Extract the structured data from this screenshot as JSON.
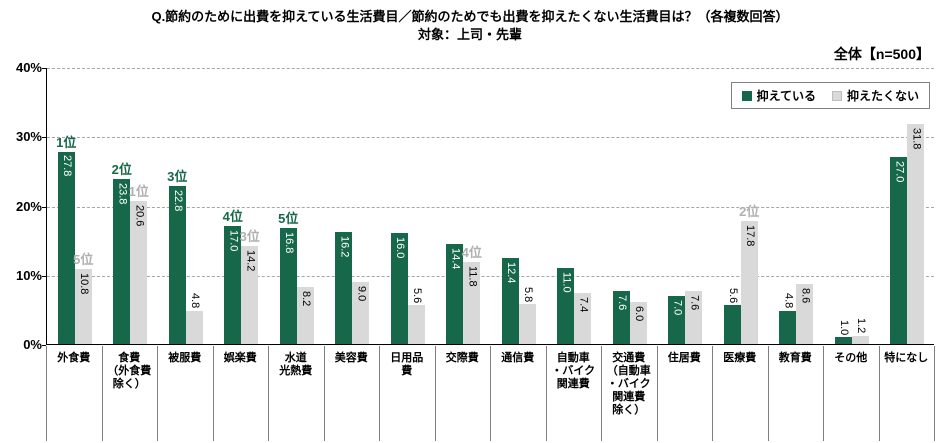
{
  "title": "Q.節約のために出費を抑えている生活費目／節約のためでも出費を抑えたくない生活費目は？（各複数回答）",
  "subtitle": "対象：上司・先輩",
  "sample_label": "全体【n=500】",
  "colors": {
    "series1": "#17684a",
    "series2": "#d9d9d9",
    "rank1": "#17684a",
    "rank2": "#b0b0b0",
    "inside_label_series1": "#ffffff",
    "inside_label_series2": "#000000",
    "axis": "#000000",
    "gridline": "#a6a6a6"
  },
  "chart_data": {
    "type": "bar",
    "title": "Q.節約のために出費を抑えている生活費目／節約のためでも出費を抑えたくない生活費目は？（各複数回答）",
    "subtitle": "対象：上司・先輩",
    "sample": "全体【n=500】",
    "xlabel": "",
    "ylabel": "",
    "ylim": [
      0,
      40
    ],
    "ytick_values": [
      0,
      10,
      20,
      30,
      40
    ],
    "ytick_labels": [
      "0%",
      "10%",
      "20%",
      "30%",
      "40%"
    ],
    "grid": "horizontal-dashed",
    "legend_position": "top-right",
    "categories": [
      [
        "外食費"
      ],
      [
        "食費",
        "（外食費",
        "除く）"
      ],
      [
        "被服費"
      ],
      [
        "娯楽費"
      ],
      [
        "水道",
        "光熱費"
      ],
      [
        "美容費"
      ],
      [
        "日用品",
        "費"
      ],
      [
        "交際費"
      ],
      [
        "通信費"
      ],
      [
        "自動車",
        "・バイク",
        "関連費"
      ],
      [
        "交通費",
        "（自動車",
        "・バイク",
        "関連費",
        "除く）"
      ],
      [
        "住居費"
      ],
      [
        "医療費"
      ],
      [
        "教育費"
      ],
      [
        "その他"
      ],
      [
        "特になし"
      ]
    ],
    "series": [
      {
        "name": "抑えている",
        "color": "#17684a",
        "values": [
          27.8,
          23.8,
          22.8,
          17.0,
          16.8,
          16.2,
          16.0,
          14.4,
          12.4,
          11.0,
          7.6,
          7.0,
          5.6,
          4.8,
          1.0,
          27.0
        ],
        "ranks": [
          "1位",
          "2位",
          "3位",
          "4位",
          "5位",
          "",
          "",
          "",
          "",
          "",
          "",
          "",
          "",
          "",
          "",
          ""
        ]
      },
      {
        "name": "抑えたくない",
        "color": "#d9d9d9",
        "values": [
          10.8,
          20.6,
          4.8,
          14.2,
          8.2,
          9.0,
          5.6,
          11.8,
          5.8,
          7.4,
          6.0,
          7.6,
          17.8,
          8.6,
          1.2,
          31.8
        ],
        "ranks": [
          "5位",
          "1位",
          "",
          "3位",
          "",
          "",
          "",
          "4位",
          "",
          "",
          "",
          "",
          "2位",
          "",
          "",
          ""
        ]
      }
    ]
  }
}
